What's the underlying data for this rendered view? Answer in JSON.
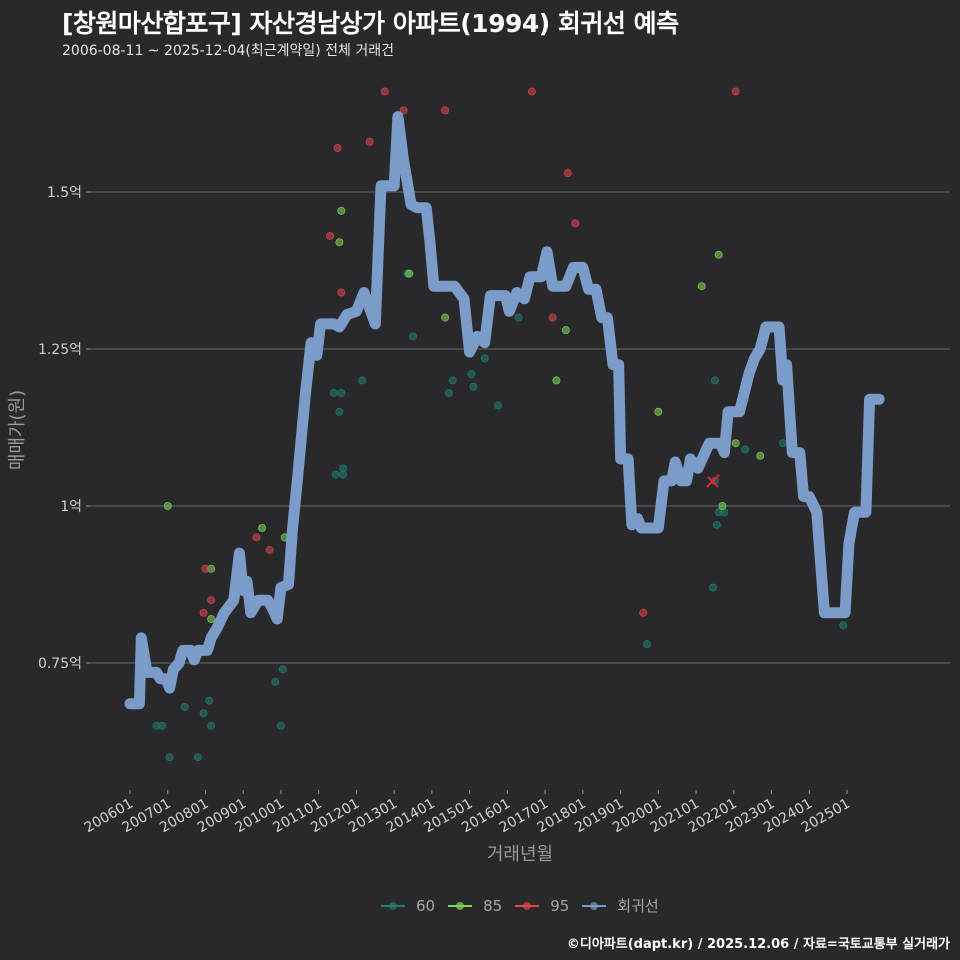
{
  "header": {
    "title": "[창원마산합포구] 자산경남상가 아파트(1994) 회귀선 예측",
    "subtitle": "2006-08-11 ~ 2025-12-04(최근계약일) 전체 거래건"
  },
  "axes": {
    "ylabel": "매매가(원)",
    "xlabel": "거래년월",
    "yticks": [
      {
        "label": "1.5억",
        "value": 1.5
      },
      {
        "label": "1.25억",
        "value": 1.25
      },
      {
        "label": "1억",
        "value": 1.0
      },
      {
        "label": "0.75억",
        "value": 0.75
      }
    ],
    "xticks": [
      "200601",
      "200701",
      "200801",
      "200901",
      "201001",
      "201101",
      "201201",
      "201301",
      "201401",
      "201501",
      "201601",
      "201701",
      "201801",
      "201901",
      "202001",
      "202101",
      "202201",
      "202301",
      "202401",
      "202501"
    ]
  },
  "legend": {
    "items": [
      {
        "label": "60",
        "color": "#1f7f73"
      },
      {
        "label": "85",
        "color": "#7ed957"
      },
      {
        "label": "95",
        "color": "#e0454f"
      },
      {
        "label": "회귀선",
        "color": "#7b9cc9"
      }
    ]
  },
  "footer": "©디아파트(dapt.kr) / 2025.12.06 / 자료=국토교통부 실거래가",
  "chart_data": {
    "type": "scatter",
    "title": "[창원마산합포구] 자산경남상가 아파트(1994) 회귀선 예측",
    "subtitle": "2006-08-11 ~ 2025-12-04(최근계약일) 전체 거래건",
    "xlabel": "거래년월",
    "ylabel": "매매가(원)",
    "unit": "억",
    "ylim": [
      0.55,
      1.7
    ],
    "xlim": [
      2005.9,
      2026.1
    ],
    "grid": "horizontal major",
    "legend_position": "bottom",
    "series": [
      {
        "name": "60",
        "type": "scatter",
        "color": "#1f7f73",
        "points": [
          [
            2006.7,
            0.65
          ],
          [
            2006.85,
            0.65
          ],
          [
            2007.05,
            0.6
          ],
          [
            2007.45,
            0.68
          ],
          [
            2007.8,
            0.6
          ],
          [
            2007.95,
            0.67
          ],
          [
            2008.1,
            0.69
          ],
          [
            2008.15,
            0.65
          ],
          [
            2009.85,
            0.72
          ],
          [
            2010.05,
            0.74
          ],
          [
            2010.0,
            0.65
          ],
          [
            2011.4,
            1.18
          ],
          [
            2011.55,
            1.15
          ],
          [
            2011.6,
            1.18
          ],
          [
            2011.45,
            1.05
          ],
          [
            2011.65,
            1.05
          ],
          [
            2011.65,
            1.06
          ],
          [
            2012.15,
            1.2
          ],
          [
            2013.35,
            1.37
          ],
          [
            2013.5,
            1.27
          ],
          [
            2014.45,
            1.18
          ],
          [
            2014.55,
            1.2
          ],
          [
            2015.05,
            1.21
          ],
          [
            2015.1,
            1.19
          ],
          [
            2015.4,
            1.235
          ],
          [
            2015.75,
            1.16
          ],
          [
            2016.3,
            1.3
          ],
          [
            2019.7,
            0.78
          ],
          [
            2021.5,
            1.2
          ],
          [
            2021.55,
            0.97
          ],
          [
            2021.6,
            0.99
          ],
          [
            2021.75,
            0.99
          ],
          [
            2021.45,
            0.87
          ],
          [
            2022.3,
            1.09
          ],
          [
            2023.3,
            1.1
          ],
          [
            2024.9,
            0.81
          ],
          [
            2021.5,
            1.04
          ]
        ]
      },
      {
        "name": "85",
        "type": "scatter",
        "color": "#7ed957",
        "points": [
          [
            2007.0,
            1.0
          ],
          [
            2008.15,
            0.9
          ],
          [
            2008.15,
            0.82
          ],
          [
            2009.5,
            0.965
          ],
          [
            2010.1,
            0.95
          ],
          [
            2011.6,
            1.47
          ],
          [
            2011.55,
            1.42
          ],
          [
            2013.4,
            1.37
          ],
          [
            2014.35,
            1.3
          ],
          [
            2017.3,
            1.2
          ],
          [
            2017.55,
            1.28
          ],
          [
            2020.0,
            1.15
          ],
          [
            2021.15,
            1.35
          ],
          [
            2021.6,
            1.4
          ],
          [
            2021.7,
            1.0
          ],
          [
            2022.05,
            1.1
          ],
          [
            2022.7,
            1.08
          ]
        ]
      },
      {
        "name": "95",
        "type": "scatter",
        "color": "#e0454f",
        "points": [
          [
            2008.0,
            0.9
          ],
          [
            2007.95,
            0.83
          ],
          [
            2008.15,
            0.85
          ],
          [
            2009.35,
            0.95
          ],
          [
            2009.7,
            0.93
          ],
          [
            2011.3,
            1.43
          ],
          [
            2011.5,
            1.57
          ],
          [
            2011.6,
            1.34
          ],
          [
            2012.35,
            1.58
          ],
          [
            2012.75,
            1.66
          ],
          [
            2013.25,
            1.63
          ],
          [
            2014.35,
            1.63
          ],
          [
            2016.65,
            1.66
          ],
          [
            2017.6,
            1.53
          ],
          [
            2017.8,
            1.45
          ],
          [
            2017.2,
            1.3
          ],
          [
            2019.6,
            0.83
          ],
          [
            2022.05,
            1.66
          ]
        ]
      },
      {
        "name": "회귀선",
        "type": "line",
        "color": "#7b9cc9",
        "points": [
          [
            2006.0,
            0.685
          ],
          [
            2006.25,
            0.685
          ],
          [
            2006.3,
            0.79
          ],
          [
            2006.45,
            0.735
          ],
          [
            2006.7,
            0.735
          ],
          [
            2006.8,
            0.725
          ],
          [
            2006.95,
            0.725
          ],
          [
            2007.05,
            0.71
          ],
          [
            2007.15,
            0.74
          ],
          [
            2007.3,
            0.75
          ],
          [
            2007.4,
            0.77
          ],
          [
            2007.6,
            0.77
          ],
          [
            2007.7,
            0.755
          ],
          [
            2007.8,
            0.77
          ],
          [
            2008.05,
            0.77
          ],
          [
            2008.15,
            0.79
          ],
          [
            2008.3,
            0.805
          ],
          [
            2008.5,
            0.83
          ],
          [
            2008.75,
            0.85
          ],
          [
            2008.9,
            0.925
          ],
          [
            2009.0,
            0.865
          ],
          [
            2009.1,
            0.88
          ],
          [
            2009.2,
            0.83
          ],
          [
            2009.4,
            0.85
          ],
          [
            2009.65,
            0.85
          ],
          [
            2009.75,
            0.84
          ],
          [
            2009.9,
            0.82
          ],
          [
            2010.0,
            0.87
          ],
          [
            2010.2,
            0.875
          ],
          [
            2010.3,
            0.96
          ],
          [
            2010.45,
            1.05
          ],
          [
            2010.65,
            1.18
          ],
          [
            2010.8,
            1.26
          ],
          [
            2010.95,
            1.24
          ],
          [
            2011.05,
            1.29
          ],
          [
            2011.4,
            1.29
          ],
          [
            2011.55,
            1.285
          ],
          [
            2011.75,
            1.305
          ],
          [
            2012.0,
            1.31
          ],
          [
            2012.2,
            1.34
          ],
          [
            2012.5,
            1.29
          ],
          [
            2012.65,
            1.51
          ],
          [
            2013.0,
            1.51
          ],
          [
            2013.1,
            1.62
          ],
          [
            2013.25,
            1.55
          ],
          [
            2013.45,
            1.48
          ],
          [
            2013.6,
            1.475
          ],
          [
            2013.85,
            1.475
          ],
          [
            2013.95,
            1.42
          ],
          [
            2014.05,
            1.35
          ],
          [
            2014.6,
            1.35
          ],
          [
            2014.85,
            1.33
          ],
          [
            2015.0,
            1.245
          ],
          [
            2015.2,
            1.27
          ],
          [
            2015.4,
            1.26
          ],
          [
            2015.55,
            1.335
          ],
          [
            2015.95,
            1.335
          ],
          [
            2016.05,
            1.31
          ],
          [
            2016.25,
            1.34
          ],
          [
            2016.45,
            1.33
          ],
          [
            2016.6,
            1.365
          ],
          [
            2016.9,
            1.365
          ],
          [
            2017.05,
            1.405
          ],
          [
            2017.2,
            1.35
          ],
          [
            2017.55,
            1.35
          ],
          [
            2017.75,
            1.38
          ],
          [
            2018.0,
            1.38
          ],
          [
            2018.15,
            1.345
          ],
          [
            2018.35,
            1.345
          ],
          [
            2018.5,
            1.3
          ],
          [
            2018.65,
            1.3
          ],
          [
            2018.8,
            1.225
          ],
          [
            2018.95,
            1.225
          ],
          [
            2019.0,
            1.075
          ],
          [
            2019.2,
            1.075
          ],
          [
            2019.3,
            0.97
          ],
          [
            2019.45,
            0.98
          ],
          [
            2019.55,
            0.965
          ],
          [
            2020.0,
            0.965
          ],
          [
            2020.15,
            1.04
          ],
          [
            2020.35,
            1.04
          ],
          [
            2020.45,
            1.07
          ],
          [
            2020.6,
            1.04
          ],
          [
            2020.75,
            1.04
          ],
          [
            2020.85,
            1.075
          ],
          [
            2021.05,
            1.06
          ],
          [
            2021.2,
            1.08
          ],
          [
            2021.35,
            1.1
          ],
          [
            2021.65,
            1.1
          ],
          [
            2021.75,
            1.085
          ],
          [
            2021.85,
            1.15
          ],
          [
            2022.15,
            1.15
          ],
          [
            2022.4,
            1.21
          ],
          [
            2022.55,
            1.235
          ],
          [
            2022.7,
            1.25
          ],
          [
            2022.85,
            1.285
          ],
          [
            2023.2,
            1.285
          ],
          [
            2023.3,
            1.2
          ],
          [
            2023.4,
            1.225
          ],
          [
            2023.55,
            1.085
          ],
          [
            2023.75,
            1.085
          ],
          [
            2023.85,
            1.015
          ],
          [
            2024.0,
            1.015
          ],
          [
            2024.2,
            0.99
          ],
          [
            2024.4,
            0.83
          ],
          [
            2024.95,
            0.83
          ],
          [
            2025.05,
            0.94
          ],
          [
            2025.2,
            0.99
          ],
          [
            2025.5,
            0.99
          ],
          [
            2025.6,
            1.17
          ],
          [
            2025.85,
            1.17
          ]
        ]
      },
      {
        "name": "latest-marker",
        "type": "marker",
        "color": "#e0252f",
        "points": [
          [
            2021.45,
            1.04
          ]
        ]
      }
    ]
  }
}
